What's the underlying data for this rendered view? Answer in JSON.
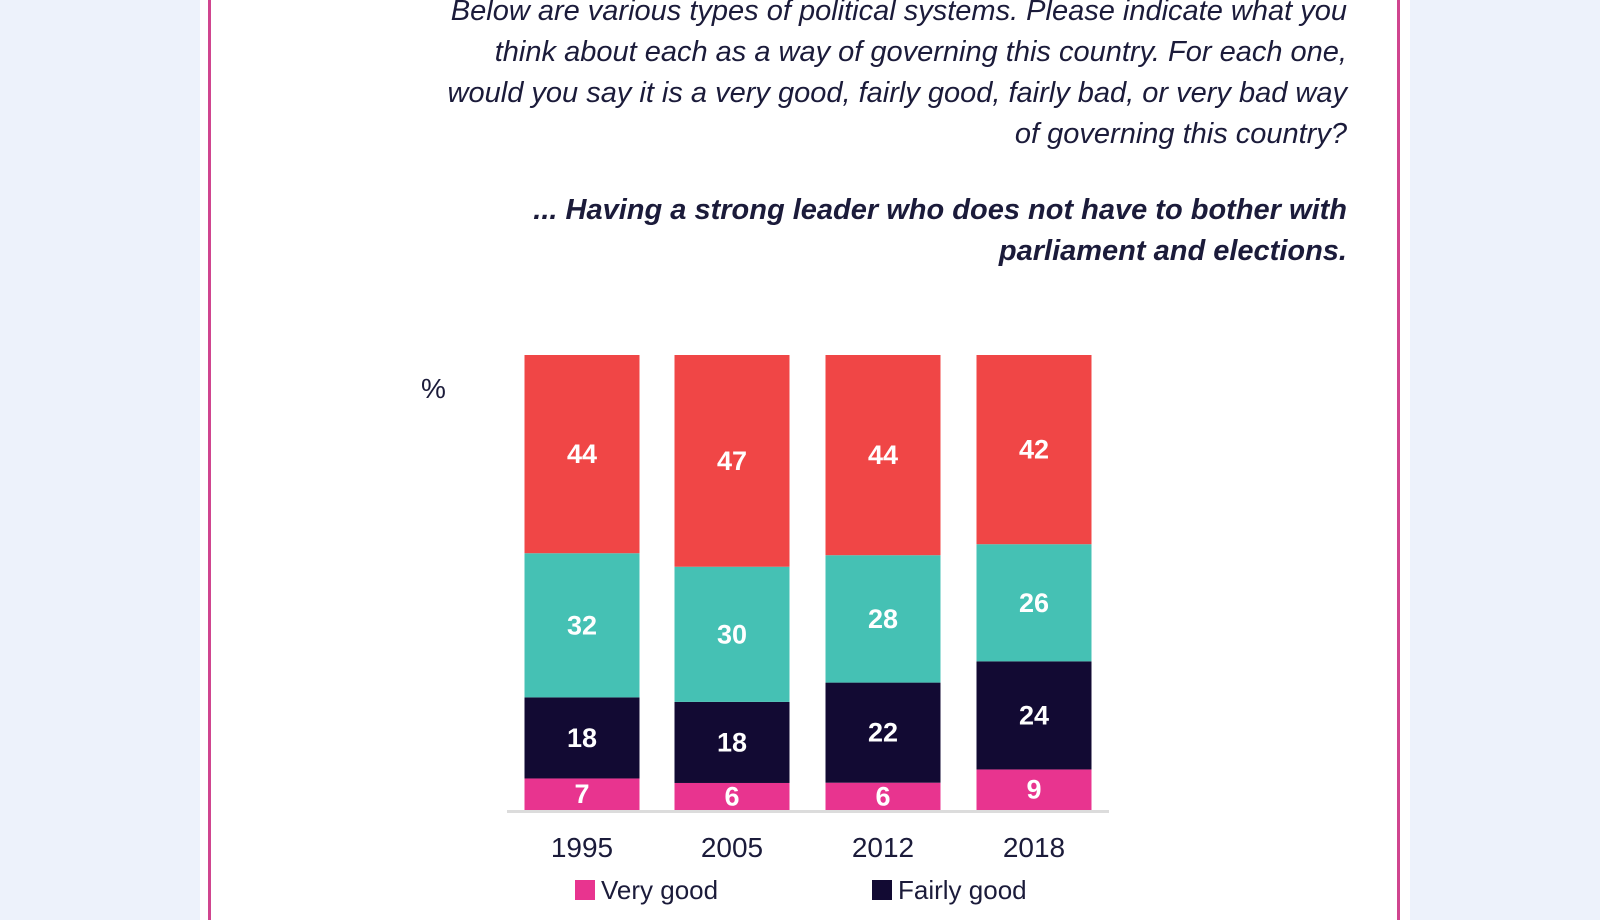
{
  "question": {
    "lines": [
      "Below are various types of political systems. Please indicate what you",
      "think about each as a way of governing this country. For each one,",
      "would you say it is a very good, fairly good, fairly bad, or very bad way",
      "of governing this country?"
    ]
  },
  "statement": {
    "lines": [
      "... Having a strong leader who does not have to bother with",
      "parliament and elections."
    ]
  },
  "unit_label": "%",
  "colors": {
    "very_good": "#e8348f",
    "fairly_good": "#120a33",
    "fairly_bad": "#45c1b4",
    "very_bad": "#f04646",
    "frame": "#d0458f",
    "text": "#1b1b3a"
  },
  "chart_data": {
    "type": "bar",
    "stacked": true,
    "categories": [
      "1995",
      "2005",
      "2012",
      "2018"
    ],
    "series": [
      {
        "name": "Very good",
        "key": "very_good",
        "values": [
          7,
          6,
          6,
          9
        ]
      },
      {
        "name": "Fairly good",
        "key": "fairly_good",
        "values": [
          18,
          18,
          22,
          24
        ]
      },
      {
        "key": "fairly_bad",
        "values": [
          32,
          30,
          28,
          26
        ]
      },
      {
        "key": "very_bad",
        "values": [
          44,
          47,
          44,
          42
        ]
      }
    ],
    "ylabel": "%",
    "legend_position": "bottom"
  },
  "legend": [
    {
      "label": "Very good",
      "key": "very_good"
    },
    {
      "label": "Fairly good",
      "key": "fairly_good"
    }
  ]
}
